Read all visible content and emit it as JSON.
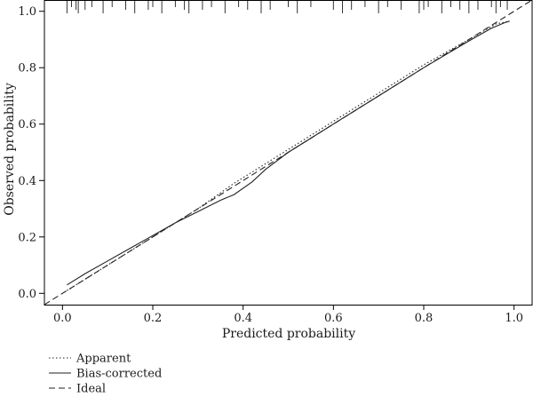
{
  "chart_data": {
    "type": "line",
    "title": "",
    "xlabel": "Predicted probability",
    "ylabel": "Observed probability",
    "xlim": [
      -0.04,
      1.04
    ],
    "ylim": [
      -0.04,
      1.04
    ],
    "x_ticks": [
      0.0,
      0.2,
      0.4,
      0.6,
      0.8,
      1.0
    ],
    "x_tick_labels": [
      "0.0",
      "0.2",
      "0.4",
      "0.6",
      "0.8",
      "1.0"
    ],
    "y_ticks": [
      0.0,
      0.2,
      0.4,
      0.6,
      0.8,
      1.0
    ],
    "y_tick_labels": [
      "0.0",
      "0.2",
      "0.4",
      "0.6",
      "0.8",
      "1.0"
    ],
    "legend_position": "bottom-left",
    "rug_position": "top",
    "series": [
      {
        "name": "Apparent",
        "style": "dotted",
        "x": [
          0.01,
          0.1,
          0.2,
          0.3,
          0.38,
          0.45,
          0.5,
          0.6,
          0.7,
          0.8,
          0.9,
          0.96,
          0.99
        ],
        "y": [
          0.01,
          0.1,
          0.2,
          0.3,
          0.39,
          0.46,
          0.51,
          0.61,
          0.71,
          0.81,
          0.9,
          0.955,
          0.965
        ]
      },
      {
        "name": "Bias-corrected",
        "style": "solid",
        "x": [
          0.01,
          0.05,
          0.1,
          0.15,
          0.2,
          0.25,
          0.3,
          0.35,
          0.38,
          0.42,
          0.45,
          0.5,
          0.55,
          0.6,
          0.7,
          0.8,
          0.9,
          0.95,
          0.98,
          0.99
        ],
        "y": [
          0.03,
          0.07,
          0.115,
          0.16,
          0.205,
          0.25,
          0.29,
          0.33,
          0.35,
          0.395,
          0.44,
          0.5,
          0.55,
          0.6,
          0.7,
          0.8,
          0.895,
          0.94,
          0.96,
          0.965
        ]
      },
      {
        "name": "Ideal",
        "style": "dashed",
        "x": [
          -0.04,
          1.04
        ],
        "y": [
          -0.04,
          1.04
        ]
      }
    ],
    "rug_x": [
      0.01,
      0.02,
      0.03,
      0.035,
      0.05,
      0.065,
      0.09,
      0.11,
      0.14,
      0.16,
      0.19,
      0.2,
      0.22,
      0.25,
      0.27,
      0.28,
      0.31,
      0.33,
      0.36,
      0.39,
      0.41,
      0.44,
      0.46,
      0.5,
      0.52,
      0.55,
      0.6,
      0.62,
      0.64,
      0.67,
      0.7,
      0.72,
      0.75,
      0.79,
      0.8,
      0.81,
      0.84,
      0.86,
      0.88,
      0.9,
      0.92,
      0.95,
      0.96,
      0.97,
      0.985
    ]
  }
}
